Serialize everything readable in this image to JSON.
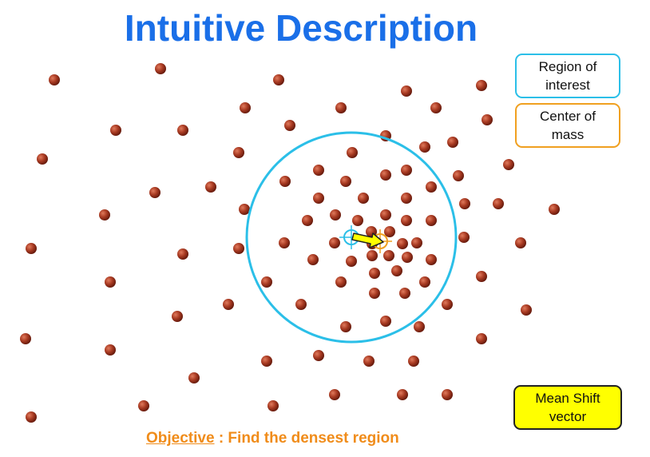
{
  "title": "Intuitive Description",
  "legend": {
    "region": [
      "Region of",
      "interest"
    ],
    "center": [
      "Center of",
      "mass"
    ],
    "vector": [
      "Mean Shift",
      "vector"
    ]
  },
  "objective": {
    "label": "Objective",
    "text": " : Find the densest region"
  },
  "colors": {
    "title": "#1a6fe8",
    "point": "#a83a22",
    "region": "#2bbfe8",
    "center": "#f0a020",
    "vector": "#ffff00",
    "objective": "#f08c1a"
  }
}
